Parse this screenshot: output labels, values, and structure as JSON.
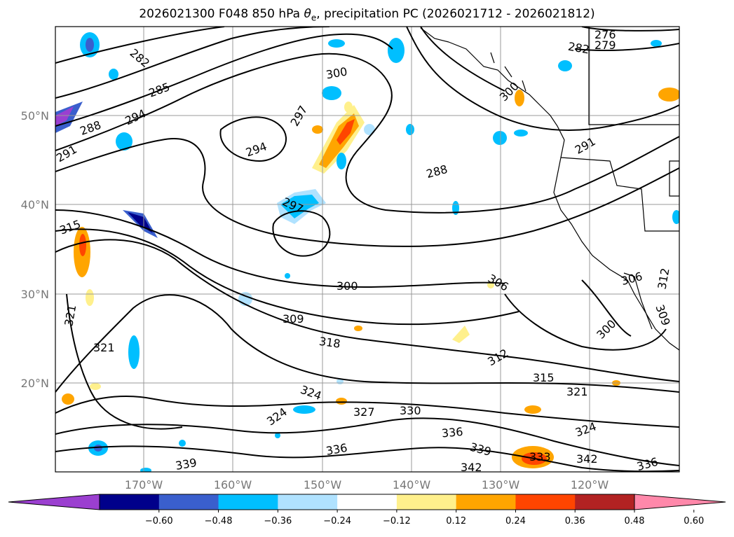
{
  "title": {
    "prefix": "2026021300 F048 850 hPa ",
    "theta_symbol": "θ",
    "theta_sub": "e",
    "suffix": ", precipitation PC (2026021712 - 2026021812)"
  },
  "axes": {
    "lat_labels": [
      "50°N",
      "40°N",
      "30°N",
      "20°N"
    ],
    "lon_labels": [
      "170°W",
      "160°W",
      "150°W",
      "140°W",
      "130°W",
      "120°W"
    ]
  },
  "colorbar": {
    "ticks": [
      "−0.60",
      "−0.48",
      "−0.36",
      "−0.24",
      "−0.12",
      "0.12",
      "0.24",
      "0.36",
      "0.48",
      "0.60"
    ],
    "colors": [
      "#9b3fd0",
      "#00008b",
      "#3a5fcd",
      "#00bfff",
      "#b0e2ff",
      "#ffffff",
      "#fff08c",
      "#ffa500",
      "#ff4500",
      "#b22222",
      "#ff88aa"
    ]
  },
  "contour_labels": [
    "282",
    "285",
    "288",
    "291",
    "294",
    "297",
    "300",
    "276",
    "279",
    "282",
    "288",
    "291",
    "294",
    "297",
    "300",
    "315",
    "321",
    "321",
    "306",
    "300",
    "309",
    "318",
    "312",
    "315",
    "321",
    "324",
    "324",
    "327",
    "330",
    "336",
    "336",
    "339",
    "339",
    "342",
    "342",
    "336",
    "306",
    "312",
    "309",
    "300",
    "324",
    "333"
  ]
}
